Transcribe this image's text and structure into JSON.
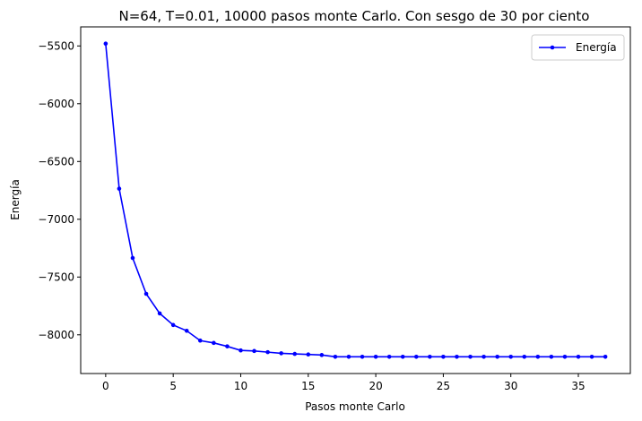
{
  "chart_data": {
    "type": "line",
    "title": "N=64, T=0.01, 10000 pasos monte Carlo. Con sesgo de 30 por ciento",
    "xlabel": "Pasos monte Carlo",
    "ylabel": "Energía",
    "xlim": [
      -1.85,
      38.85
    ],
    "ylim": [
      -8335,
      -5335
    ],
    "xticks": [
      0,
      5,
      10,
      15,
      20,
      25,
      30,
      35
    ],
    "yticks": [
      -8000,
      -7500,
      -7000,
      -6500,
      -6000,
      -5500
    ],
    "xtick_labels": [
      "0",
      "5",
      "10",
      "15",
      "20",
      "25",
      "30",
      "35"
    ],
    "ytick_labels": [
      "−8000",
      "−7500",
      "−7000",
      "−6500",
      "−6000",
      "−5500"
    ],
    "grid": false,
    "legend": {
      "placement": "top-right"
    },
    "series": [
      {
        "name": "Energía",
        "color": "#0000ff",
        "marker": "dot",
        "x": [
          0,
          1,
          2,
          3,
          4,
          5,
          6,
          7,
          8,
          9,
          10,
          11,
          12,
          13,
          14,
          15,
          16,
          17,
          18,
          19,
          20,
          21,
          22,
          23,
          24,
          25,
          26,
          27,
          28,
          29,
          30,
          31,
          32,
          33,
          34,
          35,
          36,
          37
        ],
        "y": [
          -5480,
          -6735,
          -7335,
          -7645,
          -7815,
          -7915,
          -7965,
          -8050,
          -8070,
          -8100,
          -8135,
          -8140,
          -8150,
          -8160,
          -8165,
          -8170,
          -8175,
          -8190,
          -8190,
          -8190,
          -8190,
          -8190,
          -8190,
          -8190,
          -8190,
          -8190,
          -8190,
          -8190,
          -8190,
          -8190,
          -8190,
          -8190,
          -8190,
          -8190,
          -8190,
          -8190,
          -8190,
          -8190
        ]
      }
    ]
  }
}
